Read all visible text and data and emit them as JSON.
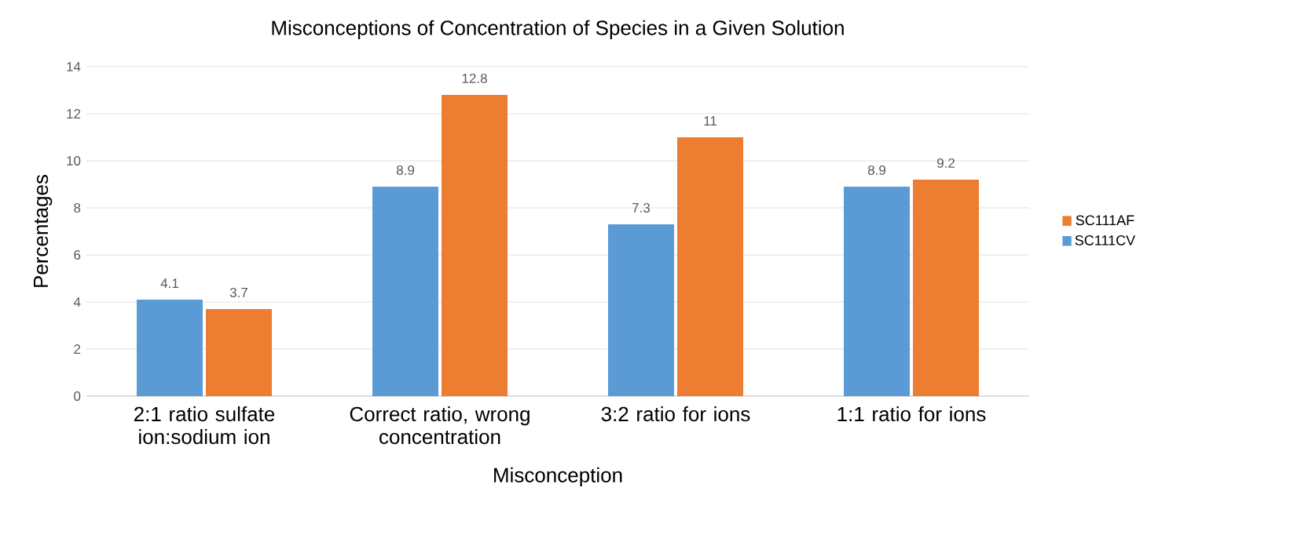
{
  "chart_data": {
    "type": "bar",
    "title": "Misconceptions of Concentration of Species in a Given Solution",
    "xlabel": "Misconception",
    "ylabel": "Percentages",
    "categories": [
      "2:1 ratio sulfate ion:sodium ion",
      "Correct ratio, wrong concentration",
      "3:2 ratio for ions",
      "1:1 ratio for ions"
    ],
    "series": [
      {
        "name": "SC111CV",
        "color": "#5b9bd5",
        "values": [
          4.1,
          8.9,
          7.3,
          8.9
        ]
      },
      {
        "name": "SC111AF",
        "color": "#ed7d31",
        "values": [
          3.7,
          12.8,
          11,
          9.2
        ]
      }
    ],
    "ylim": [
      0,
      14
    ],
    "yticks": [
      0,
      2,
      4,
      6,
      8,
      10,
      12,
      14
    ],
    "grid": "y",
    "legend": "right",
    "data_labels": true
  }
}
